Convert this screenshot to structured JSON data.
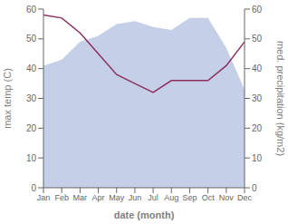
{
  "chart_data": {
    "type": "area",
    "xlabel": "date (month)",
    "ylabel": "max temp (C)",
    "y2label": "med. precipitation (kg/m2)",
    "categories": [
      "Jan",
      "Feb",
      "Mar",
      "Apr",
      "May",
      "Jun",
      "Jul",
      "Aug",
      "Sep",
      "Oct",
      "Nov",
      "Dec"
    ],
    "series": [
      {
        "type": "area",
        "color": "#c5d0e8",
        "values": [
          41,
          43,
          49,
          51,
          55,
          56,
          54,
          53,
          57,
          57,
          47,
          33
        ]
      },
      {
        "type": "line",
        "axis": "y2",
        "color": "#8b3060",
        "values": [
          58,
          57,
          52,
          45,
          38,
          35,
          32,
          36,
          36,
          36,
          41,
          49
        ]
      }
    ],
    "ylim": [
      0,
      60
    ],
    "yticks": [
      0,
      10,
      20,
      30,
      40,
      50,
      60
    ],
    "y2lim": [
      0,
      60
    ],
    "y2ticks": [
      0,
      10,
      20,
      30,
      40,
      50,
      60
    ],
    "grid": false
  }
}
